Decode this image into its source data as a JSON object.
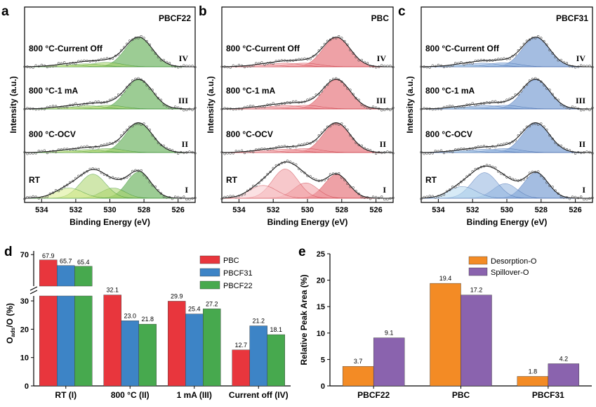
{
  "chart_data": [
    {
      "panel": "a",
      "type": "line",
      "title": "PBCF22",
      "xlabel": "Binding Energy (eV)",
      "ylabel": "Intensity (a.u.)",
      "xlim": [
        535,
        525
      ],
      "xticks": [
        534,
        532,
        530,
        528,
        526
      ],
      "traces": [
        {
          "condition": "800 °C-Current Off",
          "roman": "IV",
          "peaks": [
            {
              "center": 528.3,
              "height": 0.8,
              "width": 0.8
            },
            {
              "center": 530.2,
              "height": 0.12,
              "width": 0.9
            },
            {
              "center": 531.4,
              "height": 0.08,
              "width": 0.9
            },
            {
              "center": 532.6,
              "height": 0.05,
              "width": 0.9
            }
          ]
        },
        {
          "condition": "800 °C-1 mA",
          "roman": "III",
          "peaks": [
            {
              "center": 528.3,
              "height": 0.8,
              "width": 0.8
            },
            {
              "center": 530.1,
              "height": 0.1,
              "width": 0.9
            },
            {
              "center": 531.3,
              "height": 0.09,
              "width": 0.9
            },
            {
              "center": 532.6,
              "height": 0.05,
              "width": 0.9
            }
          ]
        },
        {
          "condition": "800 °C-OCV",
          "roman": "II",
          "peaks": [
            {
              "center": 528.3,
              "height": 0.8,
              "width": 0.8
            },
            {
              "center": 530.1,
              "height": 0.11,
              "width": 0.9
            },
            {
              "center": 531.3,
              "height": 0.08,
              "width": 0.9
            },
            {
              "center": 532.6,
              "height": 0.05,
              "width": 0.9
            }
          ]
        },
        {
          "condition": "RT",
          "roman": "I",
          "peaks": [
            {
              "center": 528.3,
              "height": 0.72,
              "width": 0.7
            },
            {
              "center": 529.8,
              "height": 0.28,
              "width": 0.7
            },
            {
              "center": 531.0,
              "height": 0.66,
              "width": 0.75
            },
            {
              "center": 532.4,
              "height": 0.28,
              "width": 0.8
            }
          ]
        }
      ]
    },
    {
      "panel": "b",
      "type": "line",
      "title": "PBC",
      "xlabel": "Binding Energy (eV)",
      "ylabel": "Intensity (a.u.)",
      "xlim": [
        535,
        525
      ],
      "xticks": [
        534,
        532,
        530,
        528,
        526
      ],
      "traces": [
        {
          "condition": "800 °C-Current Off",
          "roman": "IV",
          "peaks": [
            {
              "center": 528.3,
              "height": 0.8,
              "width": 0.8
            },
            {
              "center": 530.2,
              "height": 0.1,
              "width": 0.9
            },
            {
              "center": 531.3,
              "height": 0.1,
              "width": 0.9
            },
            {
              "center": 532.6,
              "height": 0.05,
              "width": 0.9
            }
          ]
        },
        {
          "condition": "800 °C-1 mA",
          "roman": "III",
          "peaks": [
            {
              "center": 528.3,
              "height": 0.8,
              "width": 0.8
            },
            {
              "center": 530.1,
              "height": 0.1,
              "width": 0.9
            },
            {
              "center": 531.3,
              "height": 0.1,
              "width": 0.9
            },
            {
              "center": 532.6,
              "height": 0.05,
              "width": 0.9
            }
          ]
        },
        {
          "condition": "800 °C-OCV",
          "roman": "II",
          "peaks": [
            {
              "center": 528.3,
              "height": 0.8,
              "width": 0.8
            },
            {
              "center": 530.1,
              "height": 0.11,
              "width": 0.9
            },
            {
              "center": 531.3,
              "height": 0.09,
              "width": 0.9
            },
            {
              "center": 532.6,
              "height": 0.05,
              "width": 0.9
            }
          ]
        },
        {
          "condition": "RT",
          "roman": "I",
          "peaks": [
            {
              "center": 528.3,
              "height": 0.65,
              "width": 0.7
            },
            {
              "center": 530.1,
              "height": 0.42,
              "width": 0.7
            },
            {
              "center": 531.3,
              "height": 0.8,
              "width": 0.75
            },
            {
              "center": 532.6,
              "height": 0.35,
              "width": 0.8
            }
          ]
        }
      ]
    },
    {
      "panel": "c",
      "type": "line",
      "title": "PBCF31",
      "xlabel": "Binding Energy (eV)",
      "ylabel": "Intensity (a.u.)",
      "xlim": [
        535,
        525
      ],
      "xticks": [
        534,
        532,
        530,
        528,
        526
      ],
      "traces": [
        {
          "condition": "800 °C-Current Off",
          "roman": "IV",
          "peaks": [
            {
              "center": 528.3,
              "height": 0.8,
              "width": 0.8
            },
            {
              "center": 530.2,
              "height": 0.11,
              "width": 0.9
            },
            {
              "center": 531.4,
              "height": 0.1,
              "width": 0.9
            },
            {
              "center": 532.6,
              "height": 0.05,
              "width": 0.9
            }
          ]
        },
        {
          "condition": "800 °C-1 mA",
          "roman": "III",
          "peaks": [
            {
              "center": 528.3,
              "height": 0.8,
              "width": 0.8
            },
            {
              "center": 530.1,
              "height": 0.1,
              "width": 0.9
            },
            {
              "center": 531.3,
              "height": 0.1,
              "width": 0.9
            },
            {
              "center": 532.6,
              "height": 0.05,
              "width": 0.9
            }
          ]
        },
        {
          "condition": "800 °C-OCV",
          "roman": "II",
          "peaks": [
            {
              "center": 528.3,
              "height": 0.8,
              "width": 0.8
            },
            {
              "center": 530.1,
              "height": 0.11,
              "width": 0.9
            },
            {
              "center": 531.3,
              "height": 0.09,
              "width": 0.9
            },
            {
              "center": 532.6,
              "height": 0.05,
              "width": 0.9
            }
          ]
        },
        {
          "condition": "RT",
          "roman": "I",
          "peaks": [
            {
              "center": 528.3,
              "height": 0.7,
              "width": 0.7
            },
            {
              "center": 530.1,
              "height": 0.4,
              "width": 0.7
            },
            {
              "center": 531.3,
              "height": 0.7,
              "width": 0.75
            },
            {
              "center": 532.6,
              "height": 0.32,
              "width": 0.8
            }
          ]
        }
      ]
    },
    {
      "panel": "d",
      "type": "bar",
      "ylabel": "Oads/O (%)",
      "categories": [
        "RT (I)",
        "800 °C (II)",
        "1 mA (III)",
        "Current off (IV)"
      ],
      "series": [
        {
          "name": "PBC",
          "values": [
            67.9,
            32.1,
            29.9,
            12.7
          ],
          "labels": [
            "67.9",
            "32.1",
            "29.9",
            "12.7"
          ]
        },
        {
          "name": "PBCF31",
          "values": [
            65.7,
            23.0,
            25.4,
            21.2
          ],
          "labels": [
            "65.7",
            "23.0",
            "25.4",
            "21.2"
          ]
        },
        {
          "name": "PBCF22",
          "values": [
            65.4,
            21.8,
            27.2,
            18.1
          ],
          "labels": [
            "65.4",
            "21.8",
            "27.2",
            "18.1"
          ]
        }
      ],
      "axis_break": true,
      "yticks_lower": [
        0,
        10,
        20,
        30
      ],
      "yticks_upper": [
        70
      ],
      "legend": "top-right"
    },
    {
      "panel": "e",
      "type": "bar",
      "ylabel": "Relative Peak Area (%)",
      "categories": [
        "PBCF22",
        "PBC",
        "PBCF31"
      ],
      "series": [
        {
          "name": "Desorption-O",
          "values": [
            3.7,
            19.4,
            1.8
          ],
          "labels": [
            "3.7",
            "19.4",
            "1.8"
          ]
        },
        {
          "name": "Spillover-O",
          "values": [
            9.1,
            17.2,
            4.2
          ],
          "labels": [
            "9.1",
            "17.2",
            "4.2"
          ]
        }
      ],
      "ylim": [
        0,
        25
      ],
      "yticks": [
        0,
        5,
        10,
        15,
        20,
        25
      ],
      "legend": "top-center"
    }
  ],
  "colors": {
    "a": {
      "line": "#2f8a2a",
      "fill_main": "#4aa33c",
      "fill_minor": "#a9d46a",
      "fill_extra": "#d8ec8e"
    },
    "b": {
      "line": "#c8303a",
      "fill_main": "#e0535d",
      "fill_minor": "#f09aa0",
      "fill_extra": "#f8c9cc"
    },
    "c": {
      "line": "#3a62a8",
      "fill_main": "#5a86c8",
      "fill_minor": "#8fb3df",
      "fill_extra": "#b7d8ee"
    },
    "d": [
      "#e8363d",
      "#3d84c6",
      "#47a94e"
    ],
    "e": [
      "#f38b25",
      "#8a63ae"
    ]
  }
}
